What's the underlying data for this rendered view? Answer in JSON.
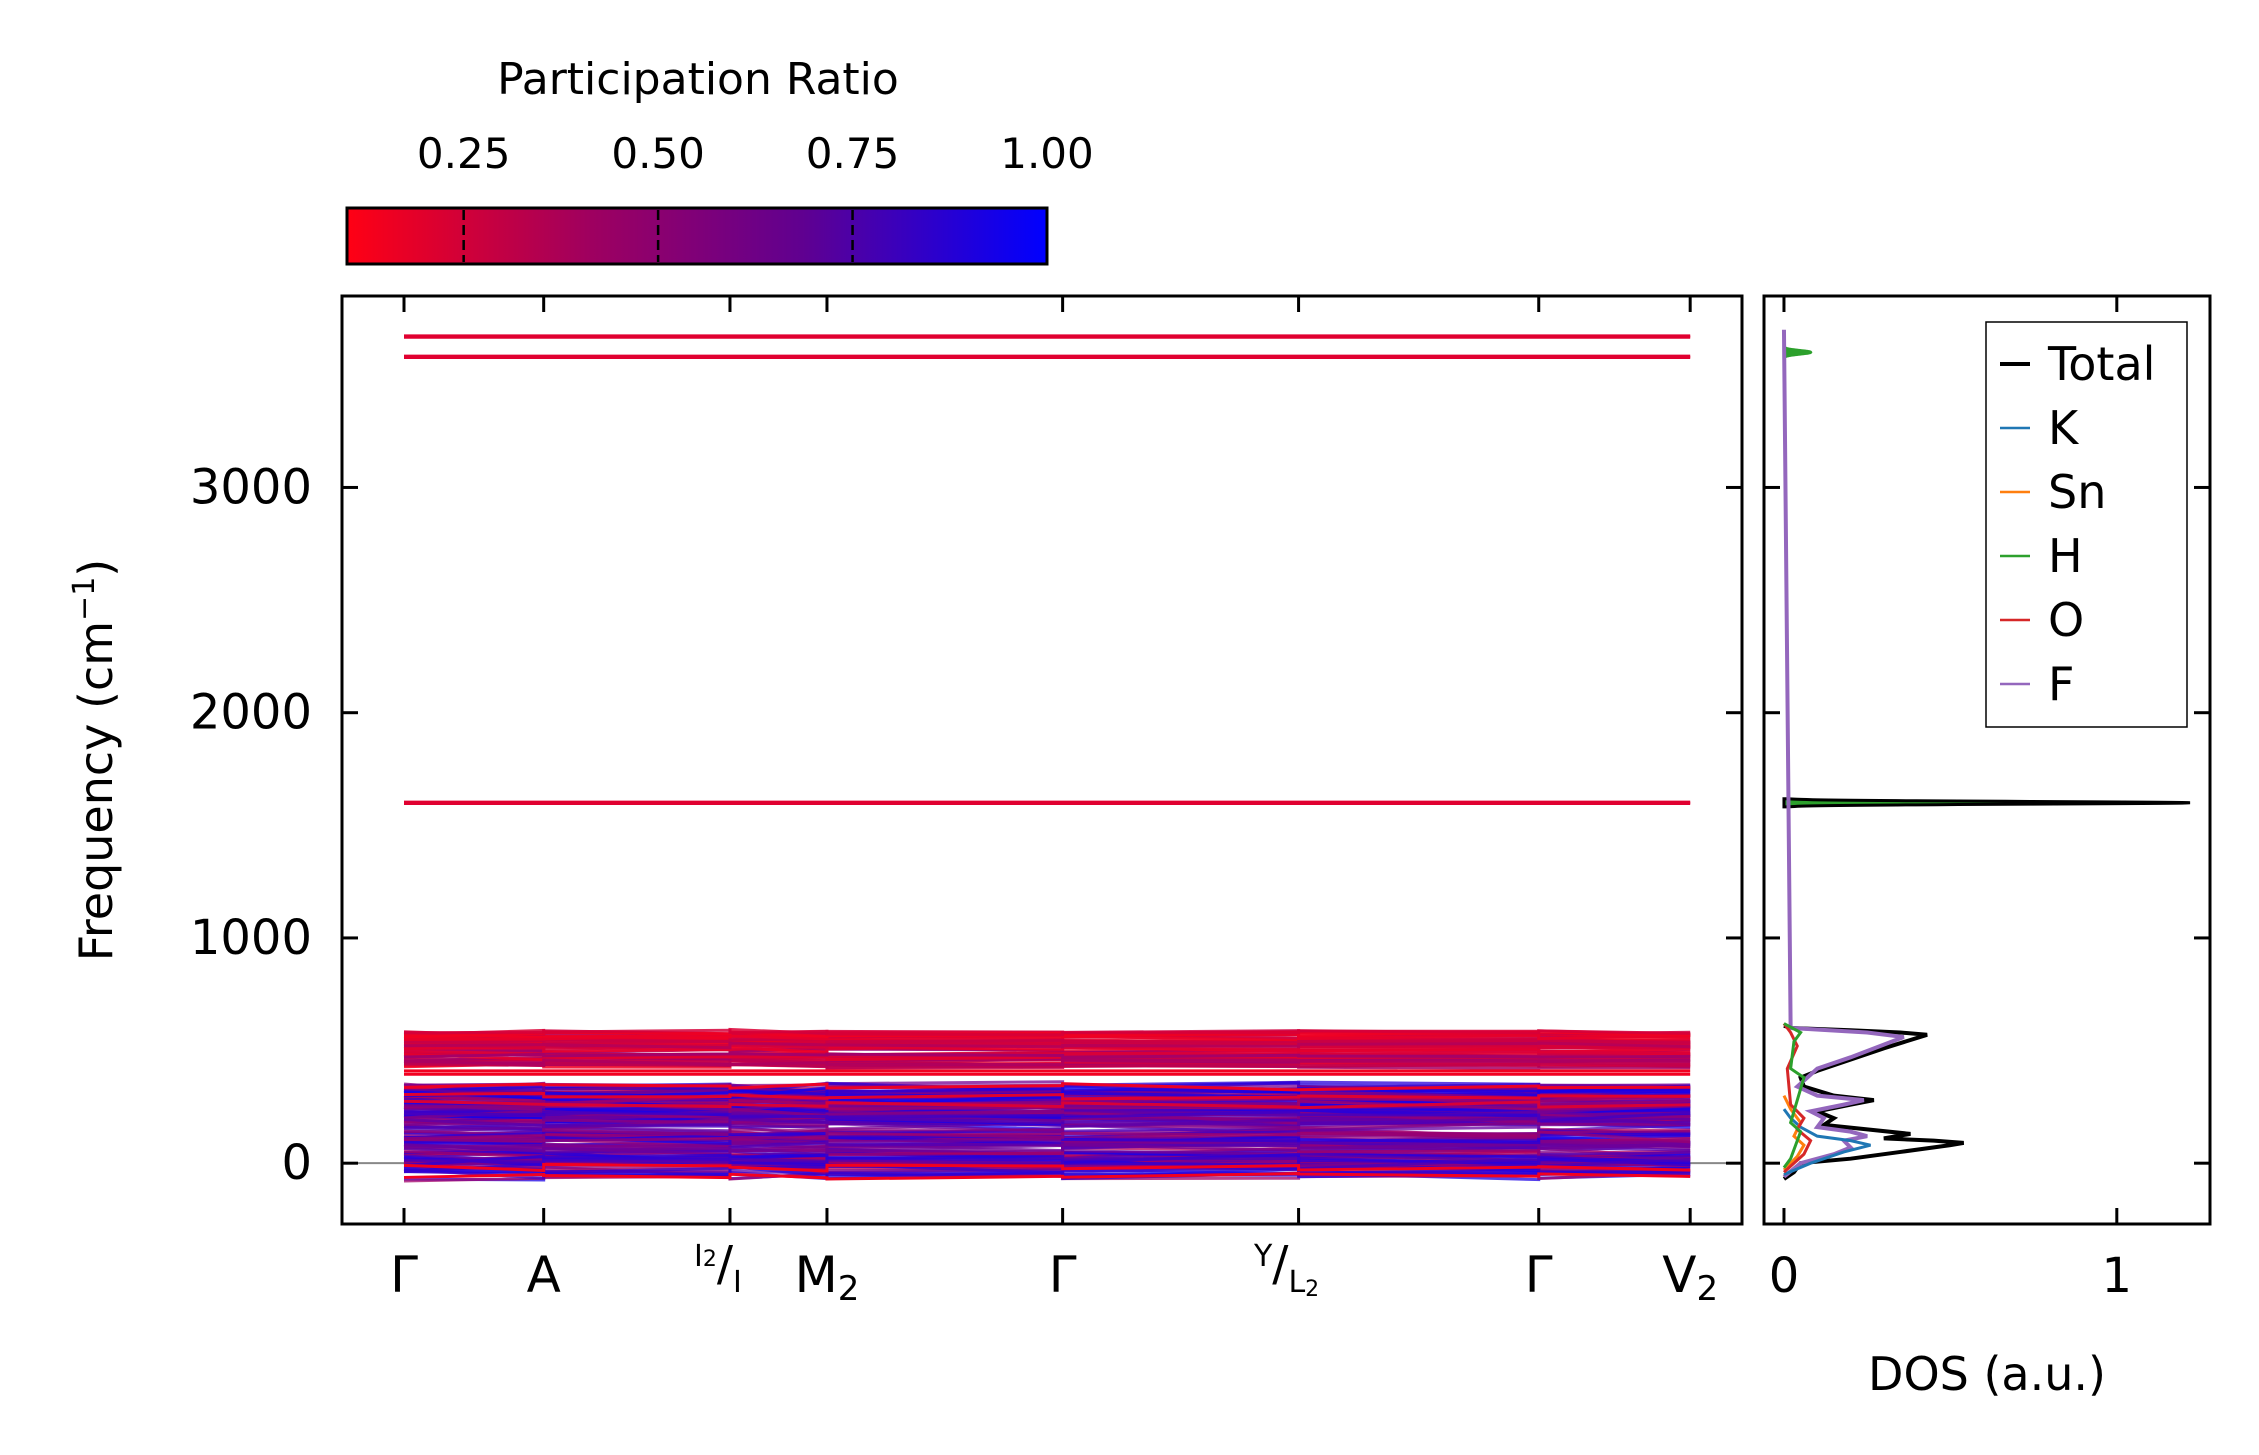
{
  "chart_data": [
    {
      "type": "line",
      "subtype": "phonon-band-structure",
      "ylabel": "Frequency (cm",
      "ylabel_sup": "−1",
      "ylabel_close": ")",
      "ylim": [
        -270,
        3850
      ],
      "yticks": [
        0,
        1000,
        2000,
        3000
      ],
      "yticklabels": [
        "0",
        "1000",
        "2000",
        "3000"
      ],
      "path_positions": [
        0.0,
        0.0962,
        0.2245,
        0.2913,
        0.4536,
        0.6161,
        0.7815,
        0.8858
      ],
      "path_labels": [
        {
          "main": "Γ"
        },
        {
          "main": "A"
        },
        {
          "top": "I",
          "top_sub": "2",
          "bottom": "I",
          "main_is_slash": true
        },
        {
          "main": "M",
          "sub": "2"
        },
        {
          "main": "Γ"
        },
        {
          "top": "Y",
          "bottom": "L",
          "bottom_sub": "2",
          "main_is_slash": true
        },
        {
          "main": "Γ"
        },
        {
          "main": "V",
          "sub": "2"
        }
      ],
      "path_ends": [
        0.0,
        0.8858
      ],
      "flat_bands_cm1": [
        3670,
        3580,
        1600
      ],
      "dense_region_high": [
        380,
        590
      ],
      "dense_region_low": [
        -80,
        340
      ],
      "zero_line": 0
    },
    {
      "type": "line",
      "subtype": "density-of-states",
      "xlabel": "DOS (a.u.)",
      "xlim": [
        -0.06,
        1.28
      ],
      "xticks": [
        0,
        1
      ],
      "xticklabels": [
        "0",
        "1"
      ],
      "series": [
        {
          "name": "Total",
          "color": "#000000"
        },
        {
          "name": "K",
          "color": "#1f77b4"
        },
        {
          "name": "Sn",
          "color": "#ff7f0e"
        },
        {
          "name": "H",
          "color": "#2ca02c"
        },
        {
          "name": "O",
          "color": "#d62728"
        },
        {
          "name": "F",
          "color": "#9467bd"
        }
      ],
      "peaks": [
        {
          "freq": 3600,
          "height": 0.08,
          "element": "H"
        },
        {
          "freq": 1600,
          "height": 1.22,
          "element": "H"
        },
        {
          "freq": 570,
          "height": 0.43,
          "element": "Total"
        },
        {
          "freq": 280,
          "height": 0.27,
          "element": "Total"
        },
        {
          "freq": 100,
          "height": 0.54,
          "element": "Total"
        },
        {
          "freq": 150,
          "height": 0.38,
          "element": "Total"
        }
      ]
    }
  ],
  "colorbar": {
    "title": "Participation Ratio",
    "range": [
      0.1,
      1.0
    ],
    "ticks": [
      0.25,
      0.5,
      0.75,
      1.0
    ],
    "ticklabels": [
      "0.25",
      "0.50",
      "0.75",
      "1.00"
    ],
    "color_low": "#ff0014",
    "color_high": "#0000ff"
  }
}
